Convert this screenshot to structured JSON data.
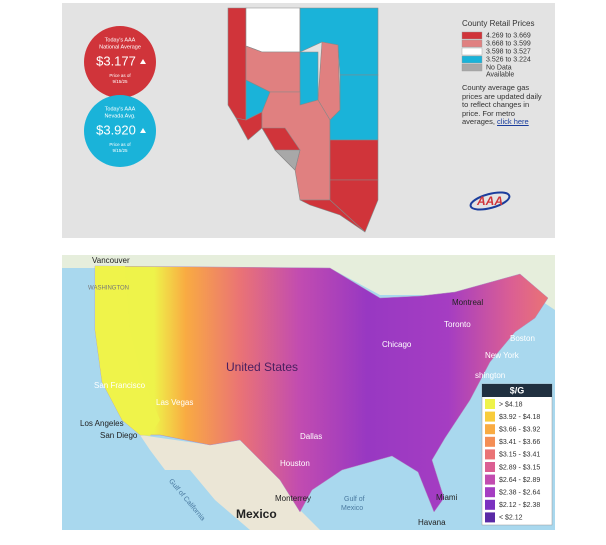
{
  "nevada_panel": {
    "national_badge": {
      "heading": [
        "Today's AAA",
        "National Average"
      ],
      "price": "$3.177",
      "note": [
        "Price as of",
        "9/15/25"
      ],
      "color": "#d0343a"
    },
    "state_badge": {
      "heading": [
        "Today's AAA",
        "Nevada Avg."
      ],
      "price": "$3.920",
      "note": [
        "Price as of",
        "9/15/25"
      ],
      "color": "#1ab3d9"
    },
    "legend": {
      "title": "County Retail Prices",
      "items": [
        {
          "label": [
            "4.269 to 3.669"
          ],
          "color": "#d0343a"
        },
        {
          "label": [
            "3.668 to 3.599"
          ],
          "color": "#e08080"
        },
        {
          "label": [
            "3.598 to 3.527"
          ],
          "color": "#ffffff"
        },
        {
          "label": [
            "3.526 to 3.224"
          ],
          "color": "#1ab3d9"
        },
        {
          "label": [
            "No Data",
            "Available"
          ],
          "color": "#a8a8a8"
        }
      ]
    },
    "note": "County average gas prices are updated daily to reflect changes in price. For metro averages,",
    "link": "click here",
    "logo": "AAA"
  },
  "us_panel": {
    "legend": {
      "title": "$/G",
      "items": [
        {
          "label": "> $4.18",
          "color": "#eef34a"
        },
        {
          "label": "$3.92 - $4.18",
          "color": "#f8cc3c"
        },
        {
          "label": "$3.66 - $3.92",
          "color": "#f9ab42"
        },
        {
          "label": "$3.41 - $3.66",
          "color": "#f48e55"
        },
        {
          "label": "$3.15 - $3.41",
          "color": "#ea7375"
        },
        {
          "label": "$2.89 - $3.15",
          "color": "#db5f93"
        },
        {
          "label": "$2.64 - $2.89",
          "color": "#c24cb0"
        },
        {
          "label": "$2.38 - $2.64",
          "color": "#a53dc2"
        },
        {
          "label": "$2.12 - $2.38",
          "color": "#7b31c0"
        },
        {
          "label": "< $2.12",
          "color": "#5a2aa6"
        }
      ]
    },
    "places": [
      "Vancouver",
      "WASHINGTON",
      "Montreal",
      "Toronto",
      "Boston",
      "Chicago",
      "New York",
      "shington",
      "United States",
      "San Francisco",
      "Las Vegas",
      "Los Angeles",
      "San Diego",
      "Dallas",
      "Houston",
      "Monterrey",
      "Gulf of",
      "Mexico",
      "Miami",
      "Mexico",
      "Havana",
      "Gulf of California"
    ]
  }
}
